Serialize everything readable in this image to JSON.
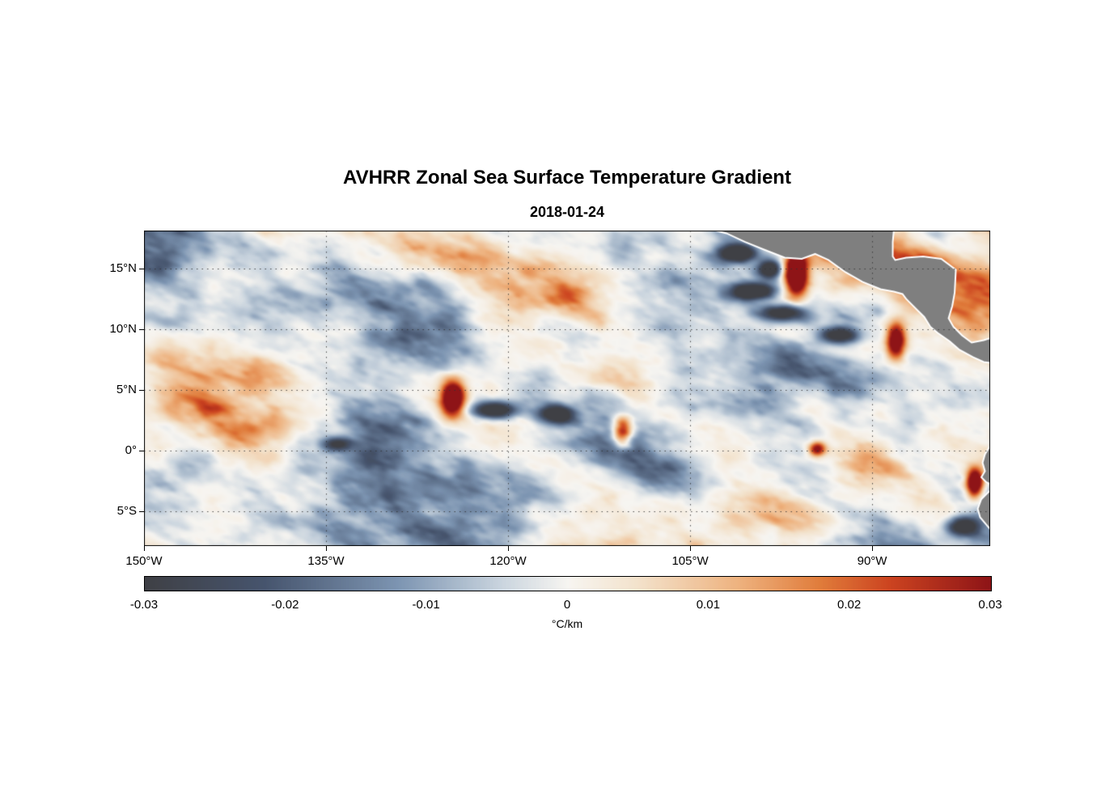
{
  "chart_data": {
    "type": "heatmap",
    "title": "AVHRR Zonal Sea Surface Temperature Gradient",
    "subtitle": "2018-01-24",
    "xlabel": "",
    "ylabel": "",
    "grid": true,
    "lon_range": [
      -150,
      -80.27
    ],
    "lat_range": [
      -7.87,
      18.13
    ],
    "x_ticks": [
      {
        "lon": -150,
        "label": "150°W"
      },
      {
        "lon": -135,
        "label": "135°W"
      },
      {
        "lon": -120,
        "label": "120°W"
      },
      {
        "lon": -105,
        "label": "105°W"
      },
      {
        "lon": -90,
        "label": "90°W"
      }
    ],
    "y_ticks": [
      {
        "lat": 15,
        "label": "15°N"
      },
      {
        "lat": 10,
        "label": "10°N"
      },
      {
        "lat": 5,
        "label": "5°N"
      },
      {
        "lat": 0,
        "label": "0°"
      },
      {
        "lat": -5,
        "label": "5°S"
      }
    ],
    "colorbar": {
      "range": [
        -0.03,
        0.03
      ],
      "label": "°C/km",
      "ticks": [
        {
          "v": -0.03,
          "label": "-0.03"
        },
        {
          "v": -0.02,
          "label": "-0.02"
        },
        {
          "v": -0.01,
          "label": "-0.01"
        },
        {
          "v": 0,
          "label": "0"
        },
        {
          "v": 0.01,
          "label": "0.01"
        },
        {
          "v": 0.02,
          "label": "0.02"
        },
        {
          "v": 0.03,
          "label": "0.03"
        }
      ]
    },
    "colormap": [
      {
        "t": 0.0,
        "c": "#3f4045"
      },
      {
        "t": 0.14,
        "c": "#46546d"
      },
      {
        "t": 0.3,
        "c": "#7d95b2"
      },
      {
        "t": 0.42,
        "c": "#c9d4de"
      },
      {
        "t": 0.5,
        "c": "#f7f5f1"
      },
      {
        "t": 0.58,
        "c": "#f3e3cd"
      },
      {
        "t": 0.7,
        "c": "#eeb380"
      },
      {
        "t": 0.8,
        "c": "#e07b3a"
      },
      {
        "t": 0.88,
        "c": "#cc4420"
      },
      {
        "t": 1.0,
        "c": "#8e1417"
      }
    ],
    "land_color": "#7f7f7f",
    "coast_color": "#ffffff",
    "grid_color": "rgba(50,50,50,0.85)",
    "field": {
      "seed": 20180124,
      "base_scale": 85,
      "octaves": 5,
      "gain": 0.55,
      "lacunarity": 2.03,
      "amplitude": 0.045,
      "gamma": 1.3,
      "angle_deg": -18,
      "stretch": 2.0
    },
    "hotspots": [
      [
        -96.3,
        14.6,
        0.055,
        0.9,
        1.7
      ],
      [
        -98.5,
        15.0,
        -0.042,
        1.0,
        0.8
      ],
      [
        -101.2,
        16.3,
        -0.04,
        1.6,
        0.7
      ],
      [
        -99.8,
        13.2,
        -0.045,
        1.9,
        0.7
      ],
      [
        -97.5,
        11.4,
        -0.038,
        2.0,
        0.7
      ],
      [
        -92.8,
        9.6,
        -0.04,
        1.6,
        0.7
      ],
      [
        -88.1,
        9.1,
        0.045,
        0.8,
        1.5
      ],
      [
        -94.6,
        0.2,
        0.035,
        0.7,
        0.6
      ],
      [
        -110.6,
        1.6,
        0.042,
        0.8,
        1.2
      ],
      [
        -124.6,
        4.4,
        0.05,
        1.0,
        1.5
      ],
      [
        -121.2,
        3.4,
        -0.042,
        1.8,
        0.7
      ],
      [
        -116.2,
        3.0,
        -0.035,
        1.5,
        0.8
      ],
      [
        -134.2,
        0.6,
        -0.03,
        1.3,
        0.6
      ],
      [
        -81.6,
        -2.6,
        0.05,
        0.7,
        1.2
      ],
      [
        -82.6,
        -6.2,
        -0.04,
        1.4,
        0.8
      ]
    ],
    "land_polygons": {
      "central_america": [
        [
          -106.0,
          19.5
        ],
        [
          -105.0,
          18.5
        ],
        [
          -103.6,
          18.3
        ],
        [
          -102.0,
          17.9
        ],
        [
          -100.5,
          17.2
        ],
        [
          -99.0,
          16.6
        ],
        [
          -97.2,
          15.9
        ],
        [
          -95.8,
          15.8
        ],
        [
          -94.7,
          16.2
        ],
        [
          -93.6,
          15.7
        ],
        [
          -92.2,
          14.7
        ],
        [
          -90.8,
          13.9
        ],
        [
          -89.3,
          13.3
        ],
        [
          -88.2,
          13.1
        ],
        [
          -87.5,
          12.9
        ],
        [
          -87.2,
          12.5
        ],
        [
          -86.2,
          11.5
        ],
        [
          -85.7,
          11.0
        ],
        [
          -85.2,
          10.2
        ],
        [
          -84.6,
          9.7
        ],
        [
          -83.6,
          9.0
        ],
        [
          -82.8,
          8.3
        ],
        [
          -81.7,
          7.7
        ],
        [
          -80.8,
          7.3
        ],
        [
          -80.0,
          7.2
        ],
        [
          -78.5,
          8.5
        ],
        [
          -79.5,
          9.5
        ],
        [
          -80.8,
          9.1
        ],
        [
          -81.8,
          8.9
        ],
        [
          -82.6,
          9.5
        ],
        [
          -83.3,
          10.2
        ],
        [
          -83.7,
          10.9
        ],
        [
          -83.4,
          11.9
        ],
        [
          -83.2,
          13.0
        ],
        [
          -83.1,
          14.9
        ],
        [
          -84.3,
          15.8
        ],
        [
          -85.8,
          16.0
        ],
        [
          -87.2,
          15.9
        ],
        [
          -88.1,
          15.7
        ],
        [
          -88.3,
          16.0
        ],
        [
          -88.3,
          17.2
        ],
        [
          -88.2,
          18.3
        ],
        [
          -88.0,
          19.5
        ]
      ],
      "south_america": [
        [
          -77.0,
          1.5
        ],
        [
          -79.0,
          1.1
        ],
        [
          -79.7,
          1.0
        ],
        [
          -80.1,
          0.7
        ],
        [
          -80.4,
          0.2
        ],
        [
          -80.7,
          -0.3
        ],
        [
          -80.9,
          -1.0
        ],
        [
          -80.7,
          -1.7
        ],
        [
          -81.0,
          -2.2
        ],
        [
          -80.6,
          -2.6
        ],
        [
          -80.0,
          -2.9
        ],
        [
          -80.3,
          -3.3
        ],
        [
          -81.0,
          -4.0
        ],
        [
          -81.3,
          -4.8
        ],
        [
          -81.1,
          -5.5
        ],
        [
          -80.6,
          -6.1
        ],
        [
          -79.9,
          -6.9
        ],
        [
          -79.3,
          -7.8
        ],
        [
          -78.8,
          -8.5
        ],
        [
          -77.0,
          -8.5
        ]
      ]
    }
  }
}
